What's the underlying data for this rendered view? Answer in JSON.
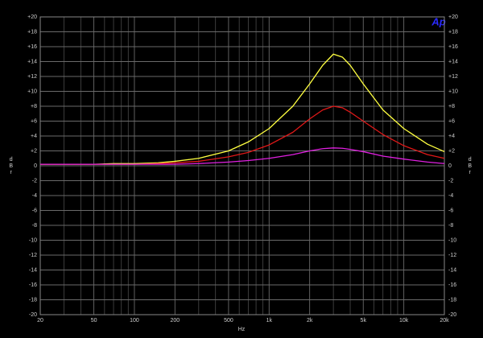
{
  "chart_data": {
    "type": "line",
    "logo": "Ap",
    "xlabel": "Hz",
    "ylabel": "dBr",
    "xscale": "log",
    "grid": true,
    "xlim": [
      20,
      20000
    ],
    "ylim": [
      -20,
      20
    ],
    "xticks": [
      20,
      50,
      100,
      200,
      500,
      {
        "value": 1000,
        "label": "1k"
      },
      {
        "value": 2000,
        "label": "2k"
      },
      {
        "value": 5000,
        "label": "5k"
      },
      {
        "value": 10000,
        "label": "10k"
      },
      {
        "value": 20000,
        "label": "20k"
      }
    ],
    "minor_xticks": [
      30,
      40,
      60,
      70,
      80,
      90,
      300,
      400,
      600,
      700,
      800,
      900,
      3000,
      4000,
      6000,
      7000,
      8000,
      9000
    ],
    "yticks": [
      {
        "value": 20,
        "label": "+20"
      },
      {
        "value": 18,
        "label": "+18"
      },
      {
        "value": 16,
        "label": "+16"
      },
      {
        "value": 14,
        "label": "+14"
      },
      {
        "value": 12,
        "label": "+12"
      },
      {
        "value": 10,
        "label": "+10"
      },
      {
        "value": 8,
        "label": "+8"
      },
      {
        "value": 6,
        "label": "+6"
      },
      {
        "value": 4,
        "label": "+4"
      },
      {
        "value": 2,
        "label": "+2"
      },
      0,
      -2,
      -4,
      -6,
      -8,
      -10,
      -12,
      -14,
      -16,
      -18,
      -20
    ],
    "x": [
      20,
      30,
      50,
      70,
      100,
      150,
      200,
      300,
      500,
      700,
      1000,
      1500,
      2000,
      2500,
      3000,
      3500,
      4000,
      5000,
      7000,
      10000,
      15000,
      20000
    ],
    "series": [
      {
        "color": "#ffff40",
        "values": [
          0.2,
          0.2,
          0.2,
          0.3,
          0.3,
          0.4,
          0.6,
          1.0,
          2.0,
          3.2,
          5.0,
          8.0,
          11.0,
          13.5,
          15.0,
          14.6,
          13.5,
          11.0,
          7.5,
          5.0,
          2.9,
          1.9
        ]
      },
      {
        "color": "#e01818",
        "values": [
          0.2,
          0.2,
          0.2,
          0.2,
          0.2,
          0.3,
          0.4,
          0.6,
          1.2,
          1.8,
          2.8,
          4.5,
          6.3,
          7.5,
          8.0,
          7.8,
          7.2,
          6.0,
          4.2,
          2.7,
          1.5,
          1.0
        ]
      },
      {
        "color": "#e020e0",
        "values": [
          0.2,
          0.2,
          0.2,
          0.2,
          0.2,
          0.2,
          0.2,
          0.3,
          0.5,
          0.7,
          1.0,
          1.5,
          2.0,
          2.3,
          2.4,
          2.35,
          2.2,
          1.9,
          1.3,
          0.9,
          0.5,
          0.3
        ]
      }
    ]
  }
}
